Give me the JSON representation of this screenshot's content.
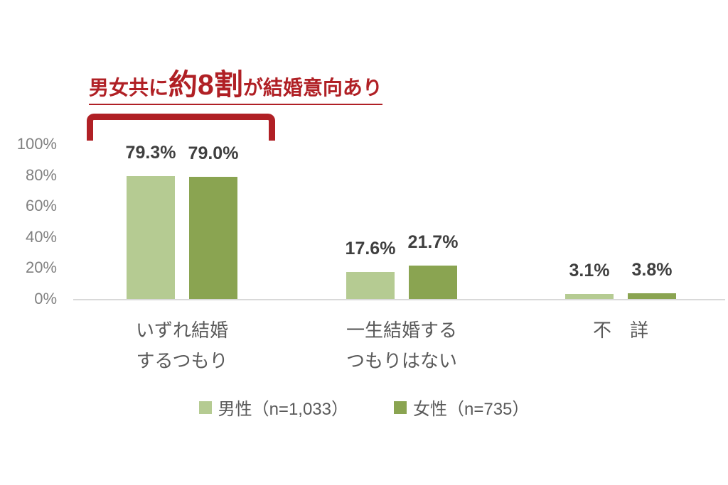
{
  "annotation": {
    "prefix": "男女共に",
    "emphasis": "約8割",
    "suffix": "が結婚意向あり",
    "color": "#b02025"
  },
  "chart_data": {
    "type": "bar",
    "title": "男女共に約8割が結婚意向あり",
    "categories": [
      "いずれ結婚\nするつもり",
      "一生結婚する\nつもりはない",
      "不　詳"
    ],
    "series": [
      {
        "name": "男性（n=1,033）",
        "color": "#b5cb92",
        "values": [
          79.3,
          17.6,
          3.1
        ],
        "labels": [
          "79.3%",
          "17.6%",
          "3.1%"
        ]
      },
      {
        "name": "女性（n=735）",
        "color": "#8aa451",
        "values": [
          79.0,
          21.7,
          3.8
        ],
        "labels": [
          "79.0%",
          "21.7%",
          "3.8%"
        ]
      }
    ],
    "y_axis": {
      "ticks": [
        "100%",
        "80%",
        "60%",
        "40%",
        "20%",
        "0%"
      ],
      "tick_values": [
        100,
        80,
        60,
        40,
        20,
        0
      ],
      "min": 0,
      "max": 100,
      "gridlines": false
    },
    "legend_position": "bottom",
    "colors": {
      "annotation_red": "#b02025",
      "value_label": "#3f3f3f",
      "axis_text": "#808080",
      "category_text": "#595959",
      "axis_line": "#d9d9d9"
    }
  }
}
